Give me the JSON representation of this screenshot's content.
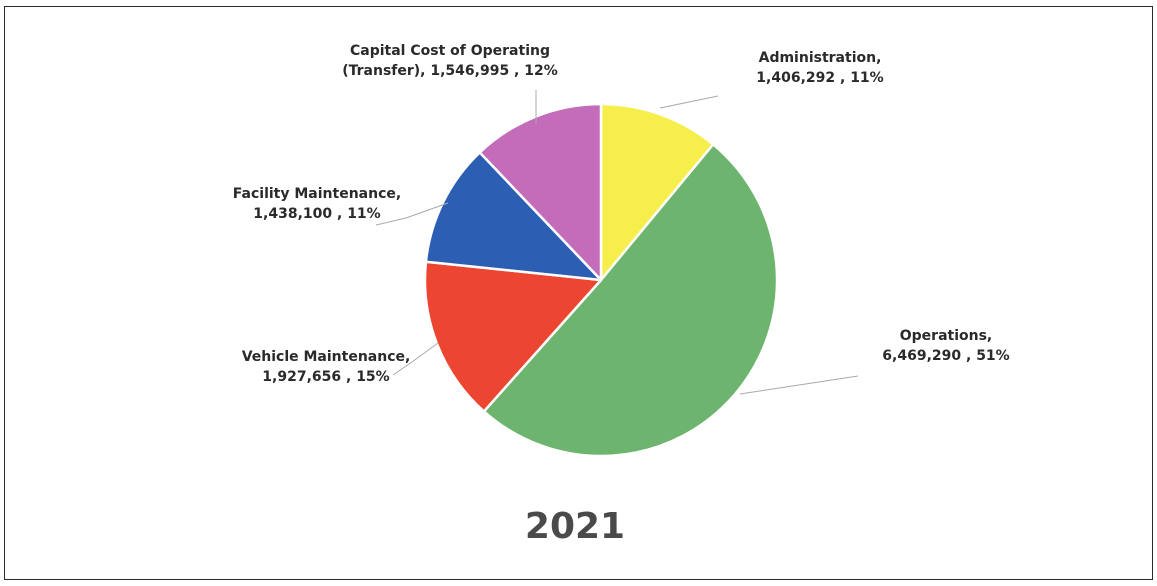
{
  "chart_data": {
    "type": "pie",
    "title": "2021",
    "slices": [
      {
        "name": "Administration",
        "value": 1406292,
        "percent": "11%",
        "color": "#F6EE4A",
        "label_lines": [
          "Administration,",
          "1,406,292 , 11%"
        ]
      },
      {
        "name": "Operations",
        "value": 6469290,
        "percent": "51%",
        "color": "#6DB46F",
        "label_lines": [
          "Operations,",
          "6,469,290 , 51%"
        ]
      },
      {
        "name": "Vehicle Maintenance",
        "value": 1927656,
        "percent": "15%",
        "color": "#EC4531",
        "label_lines": [
          "Vehicle Maintenance,",
          "1,927,656 , 15%"
        ]
      },
      {
        "name": "Facility Maintenance",
        "value": 1438100,
        "percent": "11%",
        "color": "#2C5FB3",
        "label_lines": [
          "Facility Maintenance,",
          "1,438,100 , 11%"
        ]
      },
      {
        "name": "Capital Cost of Operating (Transfer)",
        "value": 1546995,
        "percent": "12%",
        "color": "#C36DBA",
        "label_lines": [
          "Capital Cost of Operating",
          "(Transfer),  1,546,995 , 12%"
        ]
      }
    ],
    "legend": "none"
  }
}
